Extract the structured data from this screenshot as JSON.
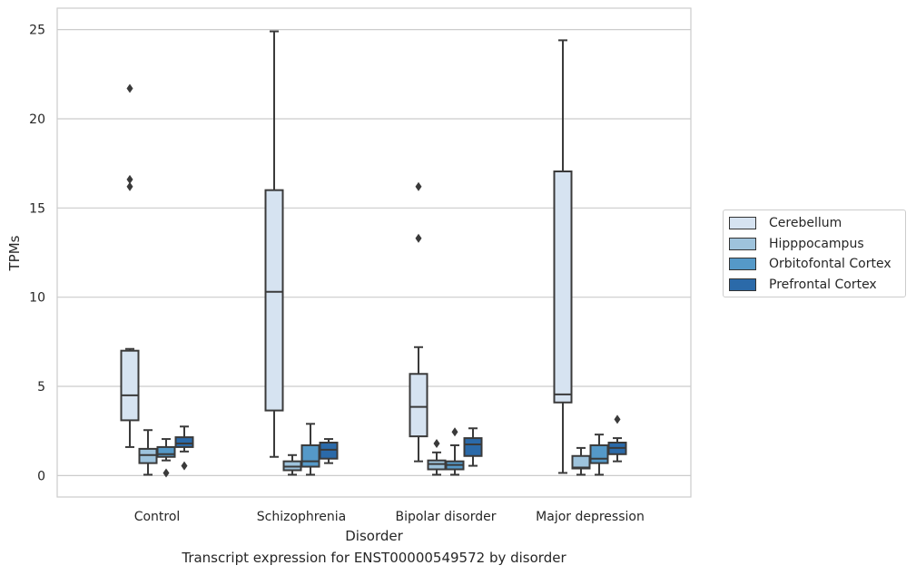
{
  "chart_data": {
    "type": "boxplot",
    "title": "Transcript expression for ENST00000549572 by disorder",
    "xlabel": "Disorder",
    "ylabel": "TPMs",
    "ylim": [
      -1.2,
      26.2
    ],
    "yticks": [
      0,
      5,
      10,
      15,
      20,
      25
    ],
    "grid": "horizontal",
    "legend_position": "right",
    "categories": [
      "Control",
      "Schizophrenia",
      "Bipolar disorder",
      "Major depression"
    ],
    "series": [
      {
        "name": "Cerebellum",
        "color": "#d6e3f1",
        "boxes": [
          {
            "whislo": 1.6,
            "q1": 3.1,
            "med": 4.5,
            "q3": 7.0,
            "whishi": 7.1,
            "fliers": [
              16.2,
              16.6,
              21.7
            ]
          },
          {
            "whislo": 1.05,
            "q1": 3.65,
            "med": 10.3,
            "q3": 16.0,
            "whishi": 24.9,
            "fliers": []
          },
          {
            "whislo": 0.8,
            "q1": 2.2,
            "med": 3.85,
            "q3": 5.7,
            "whishi": 7.2,
            "fliers": [
              13.3,
              16.2
            ]
          },
          {
            "whislo": 0.15,
            "q1": 4.1,
            "med": 4.55,
            "q3": 17.05,
            "whishi": 24.4,
            "fliers": []
          }
        ]
      },
      {
        "name": "Hipppocampus",
        "color": "#9ec3dc",
        "boxes": [
          {
            "whislo": 0.05,
            "q1": 0.7,
            "med": 1.15,
            "q3": 1.5,
            "whishi": 2.55,
            "fliers": []
          },
          {
            "whislo": 0.05,
            "q1": 0.3,
            "med": 0.5,
            "q3": 0.8,
            "whishi": 1.15,
            "fliers": []
          },
          {
            "whislo": 0.05,
            "q1": 0.35,
            "med": 0.65,
            "q3": 0.85,
            "whishi": 1.3,
            "fliers": [
              1.8
            ]
          },
          {
            "whislo": 0.05,
            "q1": 0.4,
            "med": 0.45,
            "q3": 1.1,
            "whishi": 1.55,
            "fliers": []
          }
        ]
      },
      {
        "name": "Orbitofontal Cortex",
        "color": "#5599c8",
        "boxes": [
          {
            "whislo": 0.85,
            "q1": 1.05,
            "med": 1.2,
            "q3": 1.6,
            "whishi": 2.05,
            "fliers": [
              0.15
            ]
          },
          {
            "whislo": 0.05,
            "q1": 0.5,
            "med": 0.8,
            "q3": 1.7,
            "whishi": 2.9,
            "fliers": []
          },
          {
            "whislo": 0.05,
            "q1": 0.35,
            "med": 0.6,
            "q3": 0.8,
            "whishi": 1.7,
            "fliers": [
              2.45
            ]
          },
          {
            "whislo": 0.05,
            "q1": 0.7,
            "med": 0.95,
            "q3": 1.7,
            "whishi": 2.3,
            "fliers": []
          }
        ]
      },
      {
        "name": "Prefrontal Cortex",
        "color": "#2b6aa9",
        "boxes": [
          {
            "whislo": 1.35,
            "q1": 1.6,
            "med": 1.8,
            "q3": 2.15,
            "whishi": 2.75,
            "fliers": [
              0.55
            ]
          },
          {
            "whislo": 0.7,
            "q1": 0.95,
            "med": 1.45,
            "q3": 1.85,
            "whishi": 2.05,
            "fliers": []
          },
          {
            "whislo": 0.55,
            "q1": 1.1,
            "med": 1.75,
            "q3": 2.1,
            "whishi": 2.65,
            "fliers": []
          },
          {
            "whislo": 0.8,
            "q1": 1.2,
            "med": 1.55,
            "q3": 1.85,
            "whishi": 2.1,
            "fliers": [
              3.15
            ]
          }
        ]
      }
    ]
  }
}
